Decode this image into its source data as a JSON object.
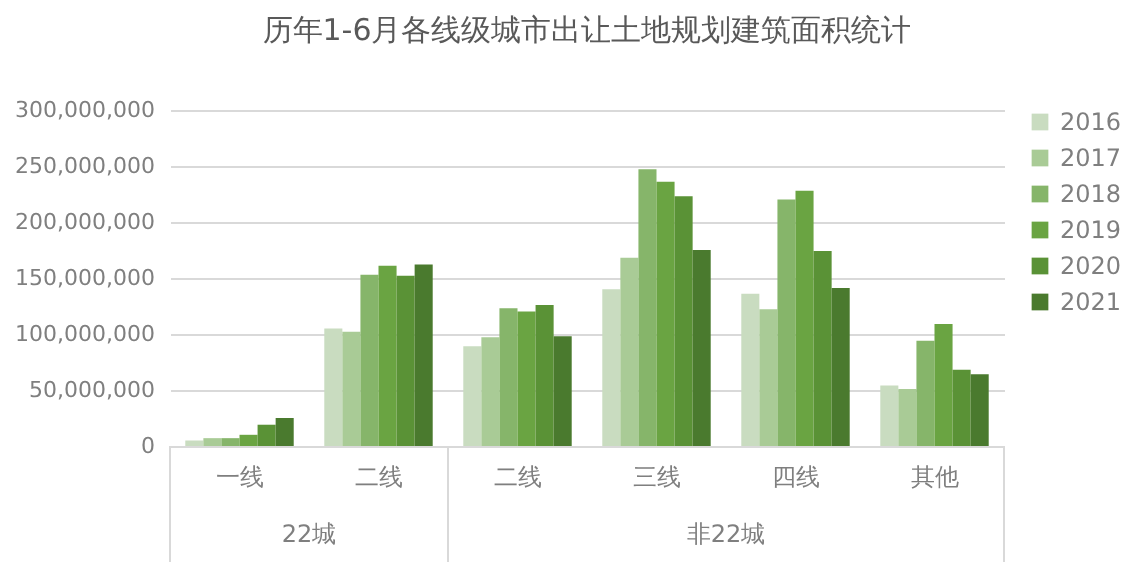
{
  "chart_data": {
    "type": "bar",
    "title": "历年1-6月各线级城市出让土地规划建筑面积统计",
    "categories": [
      "一线",
      "二线",
      "二线",
      "三线",
      "四线",
      "其他"
    ],
    "series": [
      {
        "name": "2016",
        "color": "#c9dcc0",
        "values": [
          5000000,
          105000000,
          89000000,
          140000000,
          136000000,
          54000000
        ]
      },
      {
        "name": "2017",
        "color": "#a9cb96",
        "values": [
          7000000,
          102000000,
          97000000,
          168000000,
          122000000,
          51000000
        ]
      },
      {
        "name": "2018",
        "color": "#86b56a",
        "values": [
          7000000,
          153000000,
          123000000,
          247000000,
          220000000,
          94000000
        ]
      },
      {
        "name": "2019",
        "color": "#6aa442",
        "values": [
          10000000,
          161000000,
          120000000,
          236000000,
          228000000,
          109000000
        ]
      },
      {
        "name": "2020",
        "color": "#5a9236",
        "values": [
          19000000,
          152000000,
          126000000,
          223000000,
          174000000,
          68000000
        ]
      },
      {
        "name": "2021",
        "color": "#4a7a2e",
        "values": [
          25000000,
          162000000,
          98000000,
          175000000,
          141000000,
          64000000
        ]
      }
    ],
    "annotations": [
      "22城",
      "非22城"
    ],
    "ylim": [
      0,
      300000000
    ],
    "yticks": [
      0,
      {
        "value": 50000000,
        "label": "50,000,000"
      },
      {
        "value": 100000000,
        "label": "100,000,000"
      },
      {
        "value": 150000000,
        "label": "150,000,000"
      },
      {
        "value": 200000000,
        "label": "200,000,000"
      },
      {
        "value": 250000000,
        "label": "250,000,000"
      },
      {
        "value": 300000000,
        "label": "300,000,000"
      }
    ],
    "grid": "y",
    "legend": "right"
  }
}
